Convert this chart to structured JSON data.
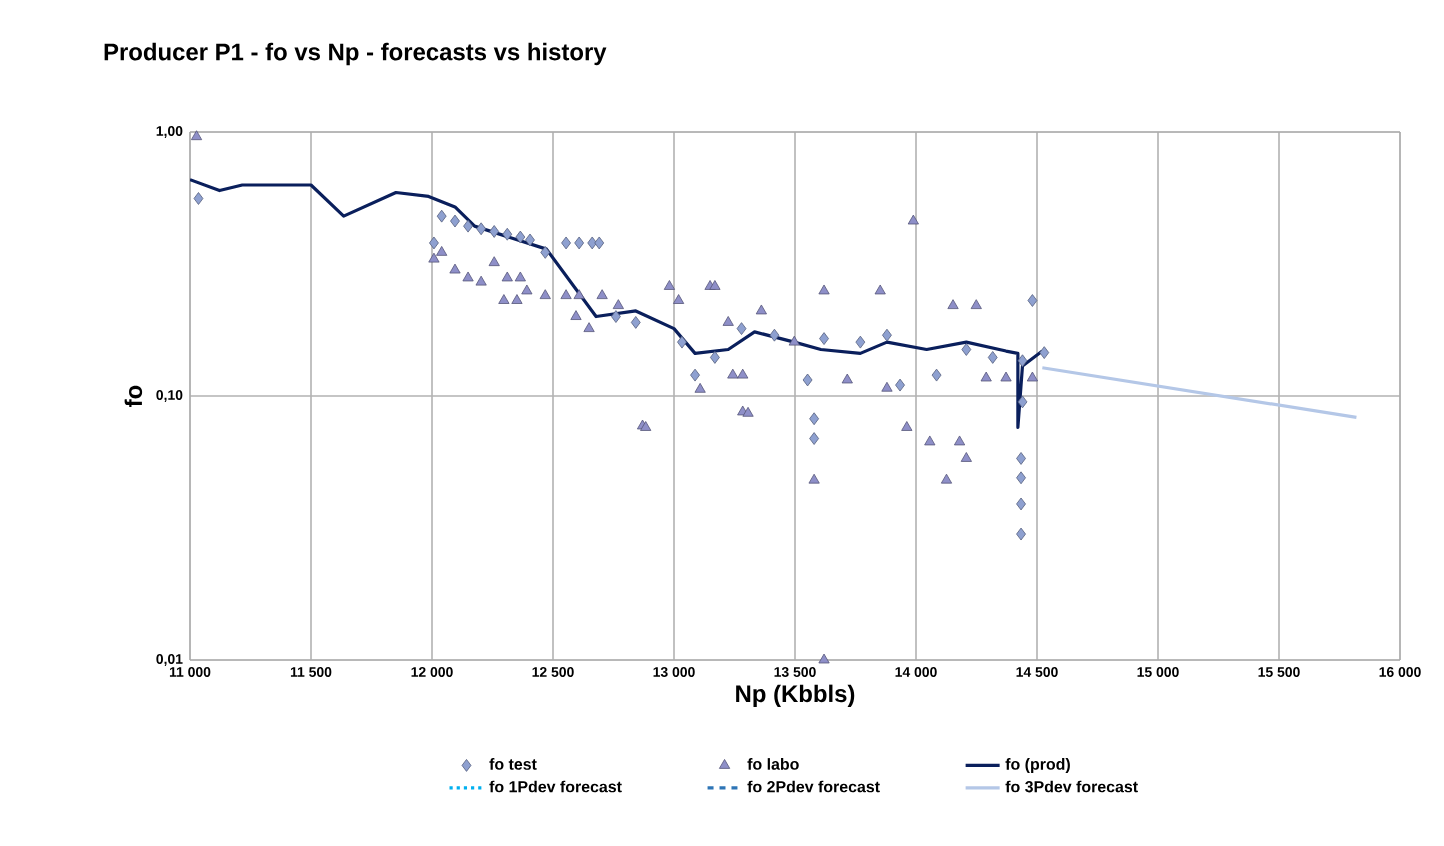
{
  "chart_data": {
    "type": "scatter",
    "title": "Producer P1 - fo vs Np - forecasts vs history",
    "xlabel": "Np (Kbbls)",
    "ylabel": "fo",
    "log": "y",
    "grid": true,
    "legend": "bottom",
    "xlim": [
      11000,
      16000
    ],
    "ylim": [
      0.01,
      1
    ],
    "xticks": [
      {
        "value": 11000,
        "label": "11 000"
      },
      {
        "value": 11500,
        "label": "11 500"
      },
      {
        "value": 12000,
        "label": "12 000"
      },
      {
        "value": 12500,
        "label": "12 500"
      },
      {
        "value": 13000,
        "label": "13 000"
      },
      {
        "value": 13500,
        "label": "13 500"
      },
      {
        "value": 14000,
        "label": "14 000"
      },
      {
        "value": 14500,
        "label": "14 500"
      },
      {
        "value": 15000,
        "label": "15 000"
      },
      {
        "value": 15500,
        "label": "15 500"
      },
      {
        "value": 16000,
        "label": "16 000"
      }
    ],
    "yticks": [
      {
        "value": 0.01,
        "label": "0,01"
      },
      {
        "value": 0.1,
        "label": "0,10"
      },
      {
        "value": 1,
        "label": "1,00"
      }
    ],
    "series": [
      {
        "name": "fo test",
        "marker": "diamond",
        "color": "#8ea0d0",
        "x": [
          11035,
          12008,
          12040,
          12095,
          12149,
          12203,
          12257,
          12311,
          12365,
          12405,
          12468,
          12554,
          12608,
          12662,
          12691,
          12760,
          12842,
          13033,
          13087,
          13169,
          13279,
          13415,
          13552,
          13579,
          13579,
          13620,
          13770,
          13880,
          13934,
          14085,
          14208,
          14317,
          14440,
          14481,
          14440,
          14434,
          14434,
          14434,
          14434,
          14530
        ],
        "values": [
          0.56,
          0.38,
          0.48,
          0.46,
          0.44,
          0.43,
          0.42,
          0.41,
          0.4,
          0.39,
          0.35,
          0.38,
          0.38,
          0.38,
          0.38,
          0.2,
          0.19,
          0.16,
          0.12,
          0.14,
          0.18,
          0.17,
          0.115,
          0.082,
          0.069,
          0.165,
          0.16,
          0.17,
          0.11,
          0.12,
          0.15,
          0.14,
          0.136,
          0.23,
          0.095,
          0.058,
          0.049,
          0.039,
          0.03,
          0.146
        ]
      },
      {
        "name": "fo labo",
        "marker": "triangle",
        "color": "#8e8fc8",
        "x": [
          11027,
          12008,
          12040,
          12095,
          12149,
          12203,
          12257,
          12311,
          12365,
          12297,
          12351,
          12392,
          12468,
          12554,
          12608,
          12595,
          12649,
          12703,
          12770,
          12870,
          12981,
          13019,
          13149,
          13108,
          13243,
          13284,
          13284,
          12883,
          13169,
          13306,
          13620,
          13579,
          13989,
          13852,
          13962,
          14208,
          14126,
          14057,
          14180,
          14153,
          14249,
          14290,
          14372,
          14481,
          13880,
          13716,
          13497,
          13361,
          13224,
          13620
        ],
        "values": [
          0.96,
          0.33,
          0.35,
          0.3,
          0.28,
          0.27,
          0.32,
          0.28,
          0.28,
          0.23,
          0.23,
          0.25,
          0.24,
          0.24,
          0.24,
          0.2,
          0.18,
          0.24,
          0.22,
          0.077,
          0.26,
          0.23,
          0.26,
          0.106,
          0.12,
          0.087,
          0.12,
          0.076,
          0.26,
          0.086,
          0.25,
          0.048,
          0.46,
          0.25,
          0.076,
          0.058,
          0.048,
          0.067,
          0.067,
          0.22,
          0.22,
          0.117,
          0.117,
          0.117,
          0.107,
          0.115,
          0.16,
          0.21,
          0.19,
          0.01
        ]
      },
      {
        "name": "fo (prod)",
        "type": "line",
        "line_style": "solid",
        "color": "#0a1f5c",
        "x": [
          11000,
          11122,
          11216,
          11500,
          11635,
          11851,
          11986,
          12095,
          12176,
          12473,
          12678,
          12842,
          13000,
          13087,
          13224,
          13333,
          13497,
          13607,
          13770,
          13880,
          14044,
          14208,
          14372,
          14421,
          14421,
          14440,
          14522
        ],
        "values": [
          0.66,
          0.6,
          0.63,
          0.63,
          0.48,
          0.59,
          0.57,
          0.52,
          0.44,
          0.36,
          0.2,
          0.21,
          0.18,
          0.145,
          0.15,
          0.175,
          0.16,
          0.15,
          0.145,
          0.16,
          0.15,
          0.16,
          0.148,
          0.145,
          0.076,
          0.13,
          0.148
        ]
      },
      {
        "name": "fo 1Pdev forecast",
        "type": "line",
        "line_style": "dotted",
        "color": "#00b0f0"
      },
      {
        "name": "fo 2Pdev forecast",
        "type": "line",
        "line_style": "dashed",
        "color": "#2e75b6"
      },
      {
        "name": "fo 3Pdev forecast",
        "type": "line",
        "line_style": "solid",
        "color": "#b4c7e7",
        "x": [
          14522,
          15820
        ],
        "values": [
          0.128,
          0.083
        ]
      }
    ]
  }
}
